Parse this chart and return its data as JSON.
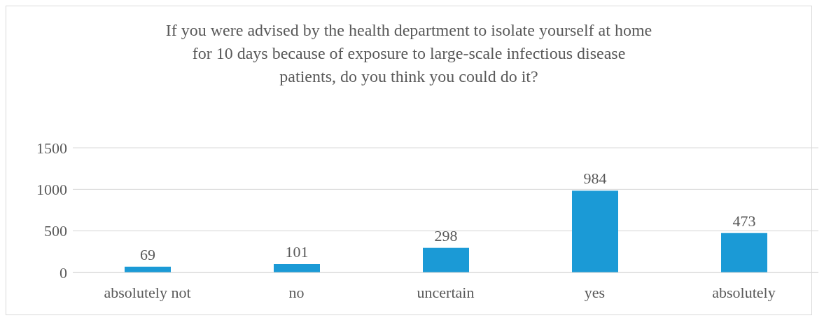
{
  "chart_data": {
    "type": "bar",
    "title": "If you were advised by the health department to isolate yourself at home for 10 days because of exposure to large-scale infectious disease patients, do you think you could do it?",
    "categories": [
      "absolutely not",
      "no",
      "uncertain",
      "yes",
      "absolutely"
    ],
    "values": [
      69,
      101,
      298,
      984,
      473
    ],
    "color": "#1b9ad6",
    "ylim": [
      0,
      1500
    ],
    "yticks": [
      0,
      500,
      1000,
      1500
    ],
    "grid": "y",
    "data_labels": true
  }
}
